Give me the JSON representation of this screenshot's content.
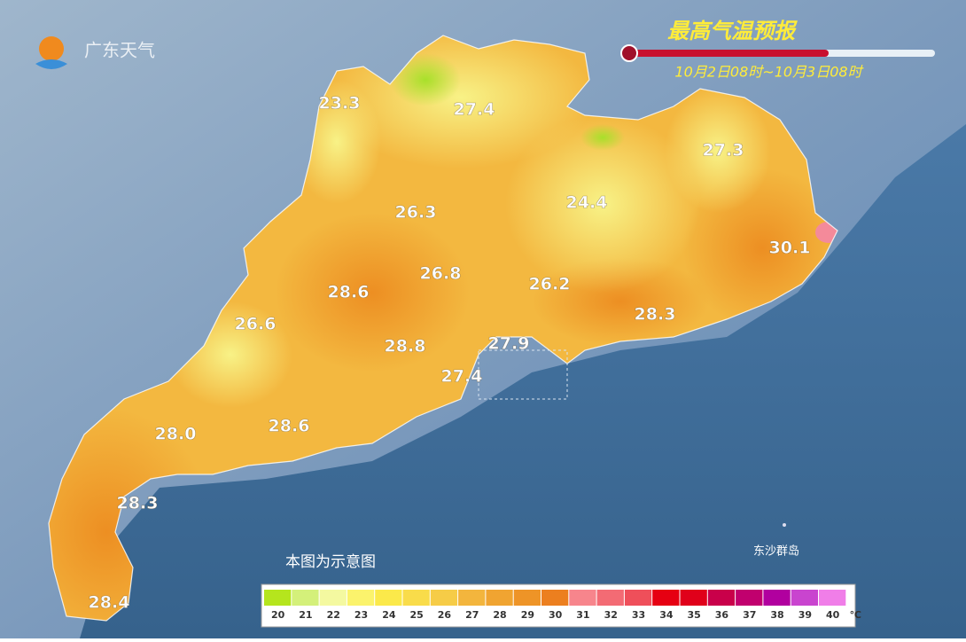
{
  "header": {
    "logo": "广东天气",
    "title": "最高气温预报",
    "period": "10月2日08时~10月3日08时"
  },
  "temperature_labels": [
    "23.3",
    "27.4",
    "27.3",
    "26.3",
    "24.4",
    "30.1",
    "26.8",
    "28.6",
    "26.2",
    "26.6",
    "28.3",
    "28.8",
    "27.9",
    "27.4",
    "28.0",
    "28.6",
    "28.3",
    "28.4"
  ],
  "notes": {
    "disclaimer": "本图为示意图",
    "island": "东沙群岛"
  },
  "legend": {
    "ticks": [
      20,
      21,
      22,
      23,
      24,
      25,
      26,
      27,
      28,
      29,
      30,
      31,
      32,
      33,
      34,
      35,
      36,
      37,
      38,
      39,
      40
    ],
    "colors": [
      "#b5e51d",
      "#d4f07a",
      "#f4f9a0",
      "#fbf36c",
      "#fbe94a",
      "#f9dc4a",
      "#f6cc47",
      "#f3b53d",
      "#f0a431",
      "#ee9427",
      "#ec7f1f",
      "#f7858c",
      "#f36b74",
      "#ef4f5a",
      "#e60012",
      "#e0001a",
      "#c9004a",
      "#c1006e",
      "#b1009f",
      "#c944cf",
      "#f07ee8"
    ],
    "unit": "℃"
  }
}
